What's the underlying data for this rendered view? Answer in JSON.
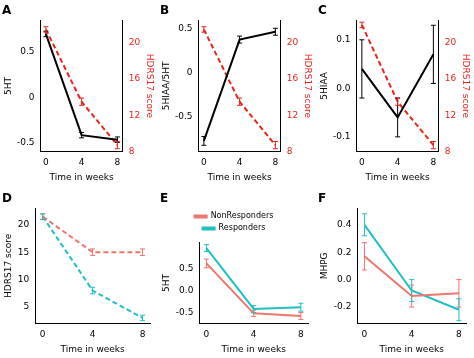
{
  "chart_data": [
    {
      "type": "line",
      "title": "A",
      "x_label": "Time in weeks",
      "y_label": "5HT",
      "y2_label": "HDRS17 score",
      "x": [
        0,
        4,
        8
      ],
      "xlim": [
        -0.6,
        8.6
      ],
      "xticks": [
        0,
        4,
        8
      ],
      "ylim": [
        -0.6,
        0.85
      ],
      "yticks": [
        -0.5,
        {
          "value": 0,
          "label": "0"
        },
        0.5
      ],
      "y2lim": [
        8,
        22.5
      ],
      "y2ticks": [
        8,
        12,
        16,
        20
      ],
      "grid": false,
      "series": [
        {
          "name": "5HT",
          "color": "#000000",
          "line_style": "solid",
          "values": [
            0.7,
            -0.42,
            -0.47
          ],
          "errors": [
            0.03,
            0.03,
            0.03
          ]
        },
        {
          "name": "HDRS17 score",
          "color": "#e8241c",
          "line_style": "dashed",
          "axis": "y2",
          "values": [
            21.5,
            13.5,
            8.7
          ],
          "errors": [
            0.3,
            0.4,
            0.4
          ]
        }
      ]
    },
    {
      "type": "line",
      "title": "B",
      "x_label": "Time in weeks",
      "y_label": "5HIAA/5HT",
      "y2_label": "HDRS17 score",
      "x": [
        0,
        4,
        8
      ],
      "xlim": [
        -0.6,
        8.6
      ],
      "xticks": [
        0,
        4,
        8
      ],
      "ylim": [
        -0.9,
        0.6
      ],
      "yticks": [
        -0.5,
        0,
        0.5
      ],
      "y2lim": [
        8,
        22.5
      ],
      "y2ticks": [
        8,
        12,
        16,
        20
      ],
      "grid": false,
      "series": [
        {
          "name": "5HIAA/5HT",
          "color": "#000000",
          "line_style": "solid",
          "values": [
            -0.78,
            0.38,
            0.47
          ],
          "errors": [
            0.05,
            0.04,
            0.04
          ]
        },
        {
          "name": "HDRS17 score",
          "color": "#e8241c",
          "line_style": "dashed",
          "axis": "y2",
          "values": [
            21.5,
            13.5,
            8.7
          ],
          "errors": [
            0.3,
            0.4,
            0.4
          ]
        }
      ]
    },
    {
      "type": "line",
      "title": "C",
      "x_label": "Time in weeks",
      "y_label": "5HIAA",
      "y2_label": "HDRS17 score",
      "x": [
        0,
        4,
        8
      ],
      "xlim": [
        -0.6,
        8.6
      ],
      "xticks": [
        0,
        4,
        8
      ],
      "ylim": [
        -0.13,
        0.14
      ],
      "yticks": [
        -0.1,
        {
          "value": 0,
          "label": "0.0"
        },
        0.1
      ],
      "y2lim": [
        8,
        22.5
      ],
      "y2ticks": [
        8,
        12,
        16,
        20
      ],
      "grid": false,
      "series": [
        {
          "name": "5HIAA",
          "color": "#000000",
          "line_style": "solid",
          "values": [
            0.04,
            -0.06,
            0.07
          ],
          "errors": [
            0.06,
            0.04,
            0.06
          ]
        },
        {
          "name": "HDRS17 score",
          "color": "#e8241c",
          "line_style": "dashed",
          "axis": "y2",
          "values": [
            22,
            13.5,
            8.7
          ],
          "errors": [
            0.3,
            0.4,
            0.4
          ]
        }
      ]
    },
    {
      "type": "line",
      "title": "D",
      "x_label": "Time in weeks",
      "y_label": "HDRS17 score",
      "x": [
        0,
        4,
        8
      ],
      "xlim": [
        -0.6,
        8.6
      ],
      "xticks": [
        0,
        4,
        8
      ],
      "ylim": [
        2,
        23
      ],
      "yticks": [
        5,
        10,
        15,
        20
      ],
      "grid": false,
      "series": [
        {
          "name": "NonResponders",
          "color": "#f0756c",
          "line_style": "dashed",
          "values": [
            21.5,
            15,
            15
          ],
          "errors": [
            0.5,
            0.6,
            0.6
          ]
        },
        {
          "name": "Responders",
          "color": "#1fbfc4",
          "line_style": "dashed",
          "values": [
            21.5,
            8,
            3
          ],
          "errors": [
            0.5,
            0.6,
            0.5
          ]
        }
      ]
    },
    {
      "type": "line",
      "title": "E",
      "x_label": "Time in weeks",
      "y_label": "5HT",
      "legend": "top",
      "x": [
        0,
        4,
        8
      ],
      "xlim": [
        -0.6,
        8.6
      ],
      "xticks": [
        0,
        4,
        8
      ],
      "ylim": [
        -0.75,
        1.1
      ],
      "yticks": [
        -0.5,
        {
          "value": 0,
          "label": "0.0"
        },
        0.5
      ],
      "grid": false,
      "series": [
        {
          "name": "NonResponders",
          "color": "#f0756c",
          "line_style": "solid",
          "values": [
            0.62,
            -0.52,
            -0.58
          ],
          "errors": [
            0.1,
            0.07,
            0.08
          ]
        },
        {
          "name": "Responders",
          "color": "#1fbfc4",
          "line_style": "solid",
          "values": [
            0.97,
            -0.42,
            -0.38
          ],
          "errors": [
            0.08,
            0.08,
            0.09
          ]
        }
      ]
    },
    {
      "type": "line",
      "title": "F",
      "x_label": "Time in weeks",
      "y_label": "MHPG",
      "x": [
        0,
        4,
        8
      ],
      "xlim": [
        -0.6,
        8.6
      ],
      "xticks": [
        0,
        4,
        8
      ],
      "ylim": [
        -0.32,
        0.52
      ],
      "yticks": [
        -0.2,
        {
          "value": 0,
          "label": "0.0"
        },
        0.2,
        0.4
      ],
      "grid": false,
      "series": [
        {
          "name": "NonResponders",
          "color": "#f0756c",
          "line_style": "solid",
          "values": [
            0.17,
            -0.12,
            -0.1
          ],
          "errors": [
            0.1,
            0.08,
            0.1
          ]
        },
        {
          "name": "Responders",
          "color": "#1fbfc4",
          "line_style": "solid",
          "values": [
            0.4,
            -0.08,
            -0.22
          ],
          "errors": [
            0.08,
            0.08,
            0.08
          ]
        }
      ]
    }
  ]
}
